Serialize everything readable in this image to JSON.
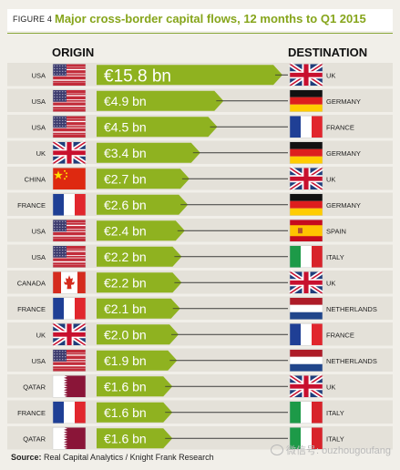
{
  "figure_label": "FIGURE 4",
  "title": "Major cross-border capital flows, 12 months to Q1 2015",
  "origin_header": "ORIGIN",
  "destination_header": "DESTINATION",
  "source_label": "Source:",
  "source_text": "Real Capital Analytics / Knight Frank Research",
  "watermark": "微信号: ouzhougoufang",
  "colors": {
    "arrow_green": "#8fb220",
    "title_green": "#86a51b",
    "background": "#f1efe9",
    "row_band": "#e4e1d9"
  },
  "chart_data": {
    "type": "bar",
    "title": "Major cross-border capital flows, 12 months to Q1 2015",
    "unit": "€ bn",
    "flows": [
      {
        "origin": "USA",
        "destination": "UK",
        "value": 15.8,
        "label": "€15.8 bn",
        "origin_flag": "us-flag",
        "destination_flag": "uk-flag"
      },
      {
        "origin": "USA",
        "destination": "GERMANY",
        "value": 4.9,
        "label": "€4.9 bn",
        "origin_flag": "us-flag",
        "destination_flag": "de-flag"
      },
      {
        "origin": "USA",
        "destination": "FRANCE",
        "value": 4.5,
        "label": "€4.5 bn",
        "origin_flag": "us-flag",
        "destination_flag": "fr-flag"
      },
      {
        "origin": "UK",
        "destination": "GERMANY",
        "value": 3.4,
        "label": "€3.4 bn",
        "origin_flag": "uk-flag",
        "destination_flag": "de-flag"
      },
      {
        "origin": "CHINA",
        "destination": "UK",
        "value": 2.7,
        "label": "€2.7 bn",
        "origin_flag": "cn-flag",
        "destination_flag": "uk-flag"
      },
      {
        "origin": "FRANCE",
        "destination": "GERMANY",
        "value": 2.6,
        "label": "€2.6 bn",
        "origin_flag": "fr-flag",
        "destination_flag": "de-flag"
      },
      {
        "origin": "USA",
        "destination": "SPAIN",
        "value": 2.4,
        "label": "€2.4 bn",
        "origin_flag": "us-flag",
        "destination_flag": "es-flag"
      },
      {
        "origin": "USA",
        "destination": "ITALY",
        "value": 2.2,
        "label": "€2.2 bn",
        "origin_flag": "us-flag",
        "destination_flag": "it-flag"
      },
      {
        "origin": "CANADA",
        "destination": "UK",
        "value": 2.2,
        "label": "€2.2 bn",
        "origin_flag": "ca-flag",
        "destination_flag": "uk-flag"
      },
      {
        "origin": "FRANCE",
        "destination": "NETHERLANDS",
        "value": 2.1,
        "label": "€2.1 bn",
        "origin_flag": "fr-flag",
        "destination_flag": "nl-flag"
      },
      {
        "origin": "UK",
        "destination": "FRANCE",
        "value": 2.0,
        "label": "€2.0 bn",
        "origin_flag": "uk-flag",
        "destination_flag": "fr-flag"
      },
      {
        "origin": "USA",
        "destination": "NETHERLANDS",
        "value": 1.9,
        "label": "€1.9 bn",
        "origin_flag": "us-flag",
        "destination_flag": "nl-flag"
      },
      {
        "origin": "QATAR",
        "destination": "UK",
        "value": 1.6,
        "label": "€1.6 bn",
        "origin_flag": "qa-flag",
        "destination_flag": "uk-flag"
      },
      {
        "origin": "FRANCE",
        "destination": "ITALY",
        "value": 1.6,
        "label": "€1.6 bn",
        "origin_flag": "fr-flag",
        "destination_flag": "it-flag"
      },
      {
        "origin": "QATAR",
        "destination": "ITALY",
        "value": 1.6,
        "label": "€1.6 bn",
        "origin_flag": "qa-flag",
        "destination_flag": "it-flag"
      }
    ]
  }
}
